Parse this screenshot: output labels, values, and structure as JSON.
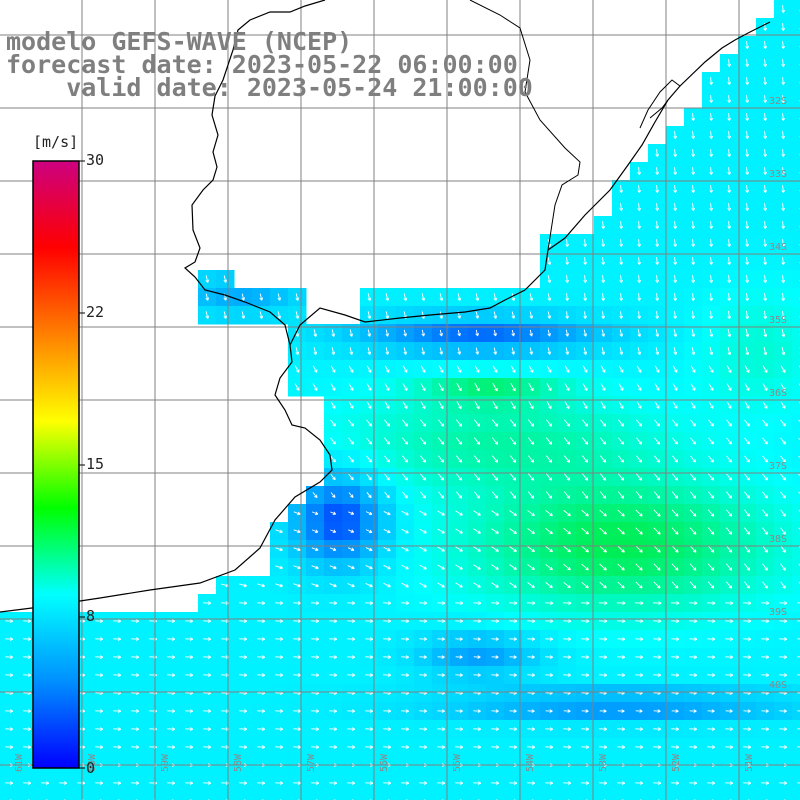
{
  "title": {
    "line1": "modelo GEFS-WAVE (NCEP)",
    "line2": "forecast date: 2023-05-22 06:00:00",
    "line3": "    valid date: 2023-05-24 21:00:00"
  },
  "colorbar": {
    "unit": "[m/s]",
    "ticks": [
      "30",
      "22",
      "15",
      "8",
      "0"
    ],
    "colors": [
      "#0000ff",
      "#0090ff",
      "#00ffff",
      "#00ff00",
      "#ffff00",
      "#ff8000",
      "#ff0000",
      "#cc0080"
    ]
  },
  "map": {
    "lat_labels": [
      "32S",
      "33S",
      "34S",
      "35S",
      "36S",
      "37S",
      "38S",
      "39S",
      "40S"
    ],
    "lon_labels": [
      "61W",
      "60W",
      "59W",
      "58W",
      "57W",
      "56W",
      "55W",
      "54W",
      "53W",
      "52W",
      "51W"
    ],
    "arrow_color": "#ffffff",
    "grid_color": "#808080",
    "coast_color": "#000000"
  }
}
